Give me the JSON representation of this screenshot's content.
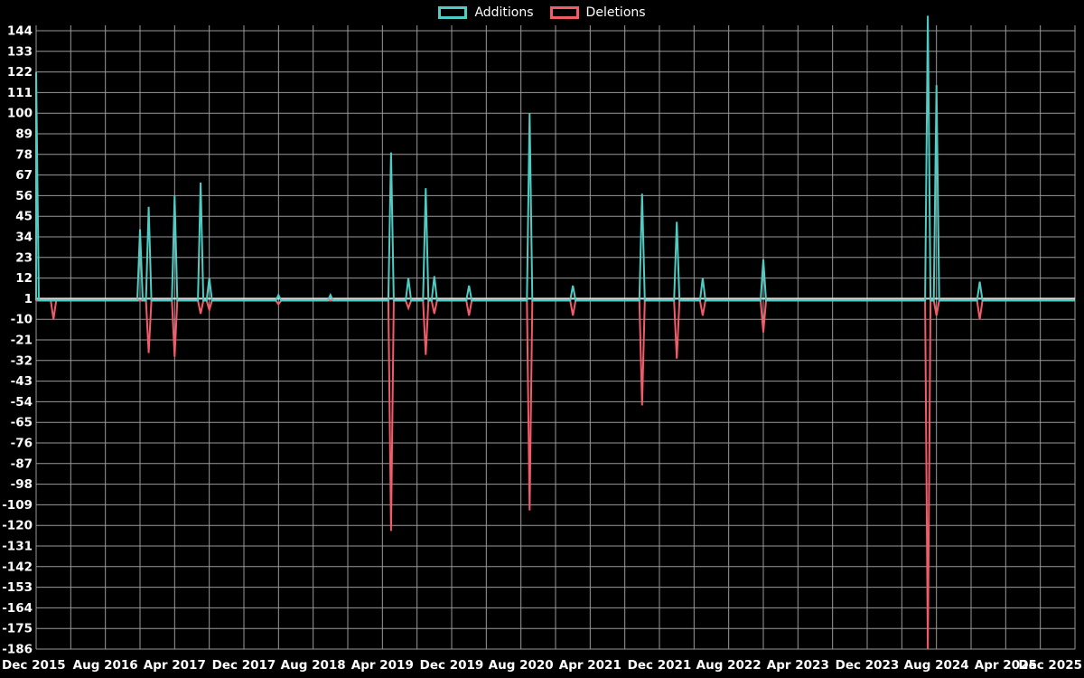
{
  "legend": {
    "items": [
      {
        "label": "Additions",
        "color": "#4ecdc4"
      },
      {
        "label": "Deletions",
        "color": "#f45b69"
      }
    ],
    "position": "top-center"
  },
  "colors": {
    "background": "#000000",
    "grid": "#999999",
    "baseline_line": "#dddddd",
    "text": "#ffffff",
    "additions": "#4ecdc4",
    "deletions": "#f45b69"
  },
  "chart_data": {
    "type": "line",
    "title": "",
    "xlabel": "",
    "ylabel": "",
    "x_start": "2015-12",
    "x_end": "2025-12",
    "x_step": "1 month",
    "baseline": 0,
    "ylim": [
      -186,
      144
    ],
    "y_tick_step": 11,
    "y_ticks": [
      144,
      133,
      122,
      111,
      100,
      89,
      78,
      67,
      56,
      45,
      34,
      23,
      12,
      1,
      -10,
      -21,
      -32,
      -43,
      -54,
      -65,
      -76,
      -87,
      -98,
      -109,
      -120,
      -131,
      -142,
      -153,
      -164,
      -175,
      -186
    ],
    "x_tick_labels": [
      "Dec 2015",
      "Aug 2016",
      "Apr 2017",
      "Dec 2017",
      "Aug 2018",
      "Apr 2019",
      "Dec 2019",
      "Aug 2020",
      "Apr 2021",
      "Dec 2021",
      "Aug 2022",
      "Apr 2023",
      "Dec 2023",
      "Aug 2024",
      "Apr 2025",
      "Dec 2025"
    ],
    "x_label_step_months": 8,
    "x_grid_step_months": 4,
    "grid": true,
    "legend_position": "top-center",
    "series": [
      {
        "name": "Additions",
        "color": "#4ecdc4",
        "spikes": [
          {
            "month": "2015-12",
            "value": 122
          },
          {
            "month": "2016-12",
            "value": 38
          },
          {
            "month": "2017-01",
            "value": 50
          },
          {
            "month": "2017-04",
            "value": 56
          },
          {
            "month": "2017-07",
            "value": 63
          },
          {
            "month": "2017-08",
            "value": 12
          },
          {
            "month": "2018-04",
            "value": 3
          },
          {
            "month": "2018-10",
            "value": 3
          },
          {
            "month": "2019-05",
            "value": 79
          },
          {
            "month": "2019-07",
            "value": 12
          },
          {
            "month": "2019-09",
            "value": 60
          },
          {
            "month": "2019-10",
            "value": 13
          },
          {
            "month": "2020-02",
            "value": 8
          },
          {
            "month": "2020-09",
            "value": 100
          },
          {
            "month": "2021-02",
            "value": 8
          },
          {
            "month": "2021-10",
            "value": 57
          },
          {
            "month": "2022-02",
            "value": 42
          },
          {
            "month": "2022-05",
            "value": 12
          },
          {
            "month": "2022-12",
            "value": 22
          },
          {
            "month": "2024-07",
            "value": 152
          },
          {
            "month": "2024-08",
            "value": 115
          },
          {
            "month": "2025-01",
            "value": 10
          }
        ]
      },
      {
        "name": "Deletions",
        "color": "#f45b69",
        "spikes": [
          {
            "month": "2016-02",
            "value": -10
          },
          {
            "month": "2017-01",
            "value": -28
          },
          {
            "month": "2017-04",
            "value": -30
          },
          {
            "month": "2017-07",
            "value": -7
          },
          {
            "month": "2017-08",
            "value": -5
          },
          {
            "month": "2018-04",
            "value": -2
          },
          {
            "month": "2019-05",
            "value": -123
          },
          {
            "month": "2019-07",
            "value": -4
          },
          {
            "month": "2019-09",
            "value": -29
          },
          {
            "month": "2019-10",
            "value": -7
          },
          {
            "month": "2020-02",
            "value": -8
          },
          {
            "month": "2020-09",
            "value": -112
          },
          {
            "month": "2021-02",
            "value": -8
          },
          {
            "month": "2021-10",
            "value": -56
          },
          {
            "month": "2022-02",
            "value": -31
          },
          {
            "month": "2022-05",
            "value": -8
          },
          {
            "month": "2022-12",
            "value": -17
          },
          {
            "month": "2024-07",
            "value": -186
          },
          {
            "month": "2024-08",
            "value": -8
          },
          {
            "month": "2025-01",
            "value": -10
          }
        ]
      }
    ]
  }
}
